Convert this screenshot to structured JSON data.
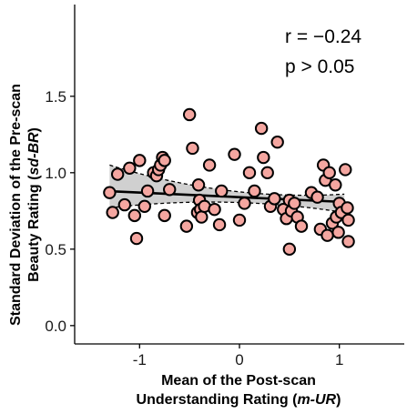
{
  "chart_data": {
    "type": "scatter",
    "title": "",
    "xlabel_line1": "Mean of the Post-scan",
    "xlabel_line2_prefix": "Understanding Rating (",
    "xlabel_line2_italic": "m-UR",
    "xlabel_line2_suffix": ")",
    "ylabel_line1": "Standard Deviation of the Pre-scan",
    "ylabel_line2_prefix": "Beauty Rating (",
    "ylabel_line2_italic": "sd-BR",
    "ylabel_line2_suffix": ")",
    "xlim": [
      -1.65,
      1.65
    ],
    "ylim": [
      -0.12,
      2.1
    ],
    "x_ticks": [
      -1,
      0,
      1
    ],
    "x_tick_labels": [
      "-1",
      "0",
      "1"
    ],
    "y_ticks": [
      0.0,
      0.5,
      1.0,
      1.5
    ],
    "y_tick_labels": [
      "0.0",
      "0.5",
      "1.0",
      "1.5"
    ],
    "annotations": [
      "r = −0.24",
      "p > 0.05"
    ],
    "point_color": "#f4a6a0",
    "point_stroke": "#000000",
    "band_color": "#c8c8c8",
    "grid": false,
    "regression": {
      "x_range": [
        -1.3,
        1.05
      ],
      "slope": -0.03,
      "intercept": 0.84,
      "ci_upper_start": 1.05,
      "ci_lower_start": 0.77,
      "ci_center_x": 0.0,
      "ci_center_half_width": 0.035,
      "ci_upper_end": 0.86,
      "ci_lower_end": 0.74
    },
    "points": [
      {
        "x": -1.3,
        "y": 0.87
      },
      {
        "x": -1.27,
        "y": 0.74
      },
      {
        "x": -1.22,
        "y": 0.99
      },
      {
        "x": -1.15,
        "y": 0.79
      },
      {
        "x": -1.1,
        "y": 1.03
      },
      {
        "x": -1.05,
        "y": 0.72
      },
      {
        "x": -1.03,
        "y": 0.57
      },
      {
        "x": -1.0,
        "y": 1.08
      },
      {
        "x": -0.95,
        "y": 0.78
      },
      {
        "x": -0.92,
        "y": 0.88
      },
      {
        "x": -0.86,
        "y": 1.0
      },
      {
        "x": -0.83,
        "y": 0.98
      },
      {
        "x": -0.81,
        "y": 1.02
      },
      {
        "x": -0.79,
        "y": 1.05
      },
      {
        "x": -0.77,
        "y": 1.1
      },
      {
        "x": -0.75,
        "y": 1.08
      },
      {
        "x": -0.75,
        "y": 0.72
      },
      {
        "x": -0.7,
        "y": 0.89
      },
      {
        "x": -0.53,
        "y": 0.65
      },
      {
        "x": -0.5,
        "y": 1.38
      },
      {
        "x": -0.47,
        "y": 1.16
      },
      {
        "x": -0.42,
        "y": 0.74
      },
      {
        "x": -0.41,
        "y": 0.92
      },
      {
        "x": -0.4,
        "y": 0.82
      },
      {
        "x": -0.39,
        "y": 0.76
      },
      {
        "x": -0.38,
        "y": 0.71
      },
      {
        "x": -0.35,
        "y": 0.78
      },
      {
        "x": -0.3,
        "y": 1.05
      },
      {
        "x": -0.25,
        "y": 0.76
      },
      {
        "x": -0.2,
        "y": 0.66
      },
      {
        "x": -0.18,
        "y": 0.88
      },
      {
        "x": -0.05,
        "y": 1.12
      },
      {
        "x": 0.0,
        "y": 0.69
      },
      {
        "x": 0.05,
        "y": 0.8
      },
      {
        "x": 0.1,
        "y": 1.0
      },
      {
        "x": 0.15,
        "y": 0.88
      },
      {
        "x": 0.22,
        "y": 1.29
      },
      {
        "x": 0.24,
        "y": 1.1
      },
      {
        "x": 0.28,
        "y": 1.0
      },
      {
        "x": 0.31,
        "y": 0.78
      },
      {
        "x": 0.35,
        "y": 0.83
      },
      {
        "x": 0.38,
        "y": 1.2
      },
      {
        "x": 0.44,
        "y": 0.76
      },
      {
        "x": 0.47,
        "y": 0.7
      },
      {
        "x": 0.5,
        "y": 0.82
      },
      {
        "x": 0.52,
        "y": 0.75
      },
      {
        "x": 0.55,
        "y": 0.8
      },
      {
        "x": 0.58,
        "y": 0.71
      },
      {
        "x": 0.62,
        "y": 0.65
      },
      {
        "x": 0.5,
        "y": 0.5
      },
      {
        "x": 0.72,
        "y": 0.87
      },
      {
        "x": 0.78,
        "y": 0.84
      },
      {
        "x": 0.81,
        "y": 0.63
      },
      {
        "x": 0.84,
        "y": 1.05
      },
      {
        "x": 0.86,
        "y": 0.95
      },
      {
        "x": 0.88,
        "y": 0.59
      },
      {
        "x": 0.9,
        "y": 1.0
      },
      {
        "x": 0.93,
        "y": 0.67
      },
      {
        "x": 0.96,
        "y": 0.92
      },
      {
        "x": 0.97,
        "y": 0.71
      },
      {
        "x": 0.99,
        "y": 0.61
      },
      {
        "x": 1.0,
        "y": 0.8
      },
      {
        "x": 1.02,
        "y": 0.74
      },
      {
        "x": 1.06,
        "y": 1.02
      },
      {
        "x": 1.08,
        "y": 0.77
      },
      {
        "x": 1.09,
        "y": 0.69
      },
      {
        "x": 1.09,
        "y": 0.55
      }
    ]
  }
}
